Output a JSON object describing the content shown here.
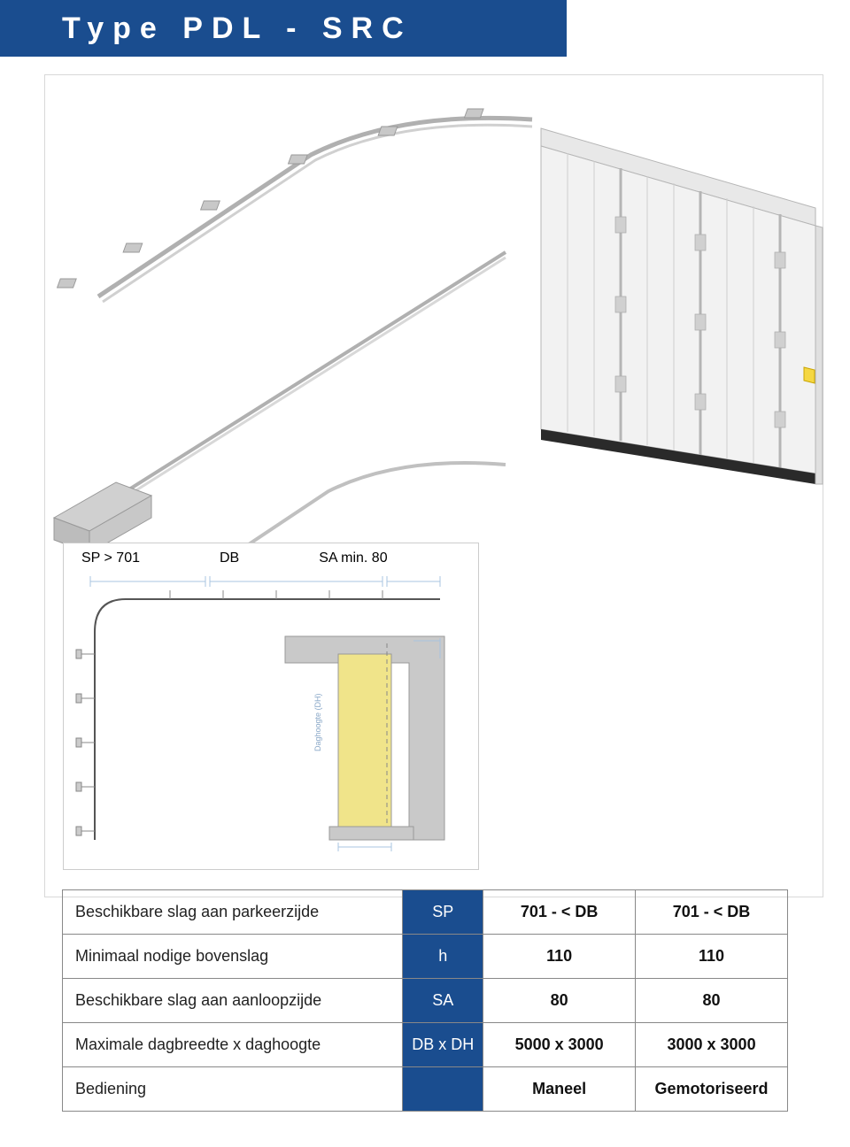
{
  "header": {
    "title": "Type PDL - SRC",
    "bg_color": "#1a4d8f",
    "text_color": "#ffffff"
  },
  "schematic": {
    "labels": {
      "sp": "SP > 701",
      "db": "DB",
      "sa": "SA min. 80"
    }
  },
  "table": {
    "rows": [
      {
        "label": "Beschikbare slag aan parkeerzijde",
        "symbol": "SP",
        "col1": "701 - < DB",
        "col2": "701 - < DB"
      },
      {
        "label": "Minimaal nodige bovenslag",
        "symbol": "h",
        "col1": "110",
        "col2": "110"
      },
      {
        "label": "Beschikbare slag aan aanloopzijde",
        "symbol": "SA",
        "col1": "80",
        "col2": "80"
      },
      {
        "label": "Maximale dagbreedte x daghoogte",
        "symbol": "DB x DH",
        "col1": "5000 x 3000",
        "col2": "3000 x 3000"
      },
      {
        "label": "Bediening",
        "symbol": "",
        "col1": "Maneel",
        "col2": "Gemotoriseerd"
      }
    ],
    "colors": {
      "symbol_bg": "#1a4d8f",
      "symbol_text": "#ffffff",
      "border": "#888888"
    }
  },
  "drawing": {
    "panel_fill": "#f2f2f2",
    "panel_stroke": "#b5b5b5",
    "rail_stroke": "#b0b0b0",
    "bracket_fill": "#c8c8c8",
    "motor_fill": "#d0d0d0",
    "seal_color": "#2a2a2a",
    "warning_yellow": "#f5d742"
  },
  "plan": {
    "wall_fill": "#c9c9c9",
    "door_fill": "#f0e48a",
    "door_stroke": "#999",
    "dashed": "#888",
    "dim_line": "#a8c4e0"
  }
}
